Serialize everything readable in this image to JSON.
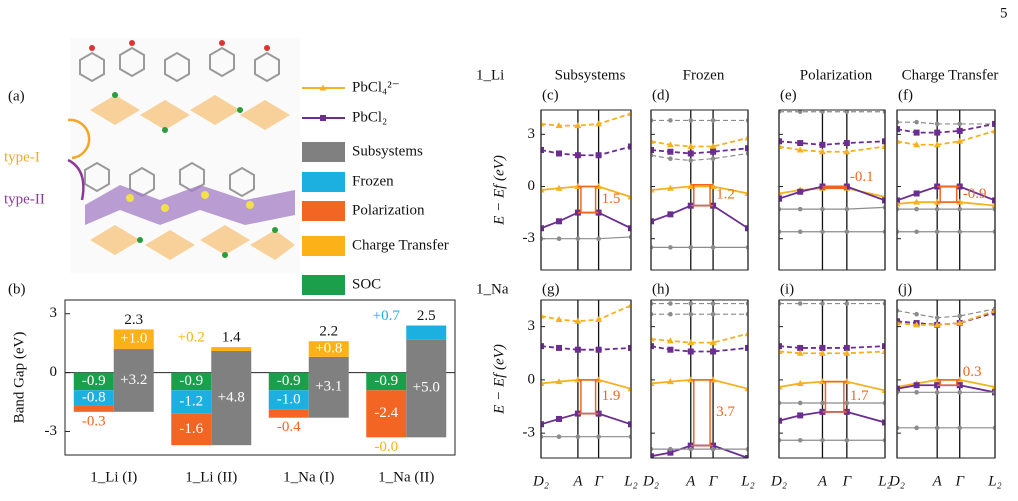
{
  "page_number": "5",
  "panel_a": {
    "label": "(a)",
    "type1": "type-I",
    "type2": "type-II"
  },
  "legend": [
    {
      "name": "PbCl₄²⁻",
      "color": "#f5b120",
      "kind": "line",
      "marker": "triangle"
    },
    {
      "name": "PbCl₂",
      "color": "#6b2d90",
      "kind": "line",
      "marker": "square"
    },
    {
      "name": "Subsystems",
      "color": "#808080",
      "kind": "patch"
    },
    {
      "name": "Frozen",
      "color": "#1cb0e0",
      "kind": "patch"
    },
    {
      "name": "Polarization",
      "color": "#f26522",
      "kind": "patch"
    },
    {
      "name": "Charge Transfer",
      "color": "#fbb117",
      "kind": "patch"
    },
    {
      "name": "SOC",
      "color": "#1a9f4a",
      "kind": "patch"
    }
  ],
  "chart_data": [
    {
      "type": "waterfall",
      "panel": "(b)",
      "ylabel": "Band Gap (eV)",
      "categories": [
        "1_Li (I)",
        "1_Li (II)",
        "1_Na (I)",
        "1_Na (II)"
      ],
      "ylim": [
        -4.2,
        3.7
      ],
      "yticks": [
        -3,
        0,
        3
      ],
      "series": [
        {
          "name": "SOC",
          "color": "#1a9f4a",
          "values": [
            -0.9,
            -0.9,
            -0.9,
            -0.9
          ]
        },
        {
          "name": "Frozen",
          "color": "#1cb0e0",
          "values": [
            -0.8,
            -1.2,
            -1.0,
            0.7
          ],
          "value_labels": [
            "-0.8",
            "-1.2",
            "-1.0",
            "+0.7"
          ]
        },
        {
          "name": "Polarization",
          "color": "#f26522",
          "values": [
            -0.3,
            -1.6,
            -0.4,
            -2.4
          ]
        },
        {
          "name": "Subsystems",
          "color": "#808080",
          "values": [
            3.2,
            4.8,
            3.1,
            5.0
          ],
          "value_labels": [
            "+3.2",
            "+4.8",
            "+3.1",
            "+5.0"
          ]
        },
        {
          "name": "Charge Transfer",
          "color": "#fbb117",
          "values": [
            1.0,
            0.2,
            0.8,
            -0.0
          ],
          "value_labels": [
            "+1.0",
            "+0.2",
            "+0.8",
            "-0.0"
          ]
        }
      ],
      "totals": [
        2.3,
        1.4,
        2.2,
        2.5
      ]
    },
    {
      "type": "line",
      "panel": "(c)",
      "title": "Subsystems",
      "row_label": "1_Li",
      "ylabel": "E − Ef (eV)",
      "ylim": [
        -4.8,
        4.4
      ],
      "yticks": [
        -3,
        0,
        3
      ],
      "x": [
        0,
        0.2,
        0.41,
        0.64,
        1
      ],
      "xticks": [
        {
          "value": 0,
          "label": "D₂"
        },
        {
          "value": 0.41,
          "label": "A"
        },
        {
          "value": 0.64,
          "label": "Γ"
        },
        {
          "value": 1,
          "label": "L₂"
        }
      ],
      "series": [
        {
          "color": "#f5b120",
          "style": "dashed",
          "marker": "triangle",
          "values": [
            3.6,
            3.5,
            3.5,
            3.6,
            4.2
          ]
        },
        {
          "color": "#6b2d90",
          "style": "dashed",
          "marker": "square",
          "values": [
            2.1,
            1.9,
            1.8,
            1.8,
            2.3
          ]
        },
        {
          "color": "#f5b120",
          "style": "solid",
          "marker": "triangle",
          "values": [
            -0.2,
            -0.1,
            0,
            0,
            -0.6
          ]
        },
        {
          "color": "#6b2d90",
          "style": "solid",
          "marker": "square",
          "values": [
            -2.4,
            -2.0,
            -1.5,
            -1.5,
            -2.4
          ]
        },
        {
          "color": "#8c8c8c",
          "style": "solid",
          "marker": "circle",
          "values": [
            -3.0,
            -3.0,
            -3.0,
            -3.0,
            -2.9
          ]
        }
      ],
      "gap": 1.5
    },
    {
      "type": "line",
      "panel": "(d)",
      "title": "Frozen",
      "ylim": [
        -4.8,
        4.4
      ],
      "yticks": [
        -3,
        0,
        3
      ],
      "x": [
        0,
        0.2,
        0.41,
        0.64,
        1
      ],
      "xticks": [
        {
          "value": 0,
          "label": "D₂"
        },
        {
          "value": 0.41,
          "label": "A"
        },
        {
          "value": 0.64,
          "label": "Γ"
        },
        {
          "value": 1,
          "label": "L₂"
        }
      ],
      "series": [
        {
          "color": "#8c8c8c",
          "style": "dashed",
          "marker": "circle",
          "values": [
            3.8,
            3.8,
            3.8,
            3.8,
            3.8
          ]
        },
        {
          "color": "#f5b120",
          "style": "dashed",
          "marker": "triangle",
          "values": [
            2.6,
            2.4,
            2.3,
            2.3,
            2.8
          ]
        },
        {
          "color": "#6b2d90",
          "style": "dashed",
          "marker": "square",
          "values": [
            2.1,
            2.0,
            1.9,
            2.0,
            2.2
          ]
        },
        {
          "color": "#8c8c8c",
          "style": "dashed",
          "marker": "circle",
          "values": [
            1.8,
            1.6,
            1.5,
            1.6,
            1.9
          ]
        },
        {
          "color": "#f5b120",
          "style": "solid",
          "marker": "triangle",
          "values": [
            -0.2,
            -0.1,
            0,
            0,
            -0.4
          ]
        },
        {
          "color": "#6b2d90",
          "style": "solid",
          "marker": "square",
          "values": [
            -2.0,
            -1.6,
            -1.1,
            -1.1,
            -2.4
          ]
        },
        {
          "color": "#8c8c8c",
          "style": "solid",
          "marker": "circle",
          "values": [
            -3.5,
            -3.5,
            -3.5,
            -3.5,
            -3.5
          ]
        }
      ],
      "gap": 1.2
    },
    {
      "type": "line",
      "panel": "(e)",
      "title": "Polarization",
      "ylim": [
        -4.8,
        4.4
      ],
      "yticks": [
        -3,
        0,
        3
      ],
      "x": [
        0,
        0.2,
        0.41,
        0.64,
        1
      ],
      "xticks": [
        {
          "value": 0,
          "label": "D₂"
        },
        {
          "value": 0.41,
          "label": "A"
        },
        {
          "value": 0.64,
          "label": "Γ"
        },
        {
          "value": 1,
          "label": "L₂"
        }
      ],
      "series": [
        {
          "color": "#8c8c8c",
          "style": "dashed",
          "marker": "circle",
          "values": [
            4.3,
            4.3,
            4.3,
            4.3,
            4.3
          ]
        },
        {
          "color": "#6b2d90",
          "style": "dashed",
          "marker": "square",
          "values": [
            2.6,
            2.5,
            2.4,
            2.5,
            2.6
          ]
        },
        {
          "color": "#f5b120",
          "style": "dashed",
          "marker": "triangle",
          "values": [
            2.3,
            2.1,
            2.0,
            2.0,
            2.3
          ]
        },
        {
          "color": "#f5b120",
          "style": "solid",
          "marker": "triangle",
          "values": [
            -0.4,
            -0.2,
            -0.1,
            -0.1,
            -0.6
          ]
        },
        {
          "color": "#6b2d90",
          "style": "solid",
          "marker": "square",
          "values": [
            -0.7,
            -0.3,
            0,
            0,
            -0.8
          ]
        },
        {
          "color": "#8c8c8c",
          "style": "solid",
          "marker": "circle",
          "values": [
            -1.3,
            -1.3,
            -1.3,
            -1.3,
            -1.2
          ]
        },
        {
          "color": "#8c8c8c",
          "style": "solid",
          "marker": "circle",
          "values": [
            -2.6,
            -2.6,
            -2.6,
            -2.6,
            -2.6
          ]
        }
      ],
      "gap": -0.1
    },
    {
      "type": "line",
      "panel": "(f)",
      "title": "Charge Transfer",
      "ylim": [
        -4.8,
        4.4
      ],
      "yticks": [
        -3,
        0,
        3
      ],
      "x": [
        0,
        0.2,
        0.41,
        0.64,
        1
      ],
      "xticks": [
        {
          "value": 0,
          "label": "D₂"
        },
        {
          "value": 0.41,
          "label": "A"
        },
        {
          "value": 0.64,
          "label": "Γ"
        },
        {
          "value": 1,
          "label": "L₂"
        }
      ],
      "series": [
        {
          "color": "#8c8c8c",
          "style": "dashed",
          "marker": "circle",
          "values": [
            3.7,
            3.7,
            3.6,
            3.6,
            3.6
          ]
        },
        {
          "color": "#6b2d90",
          "style": "dashed",
          "marker": "square",
          "values": [
            3.3,
            3.1,
            3.1,
            3.2,
            3.6
          ]
        },
        {
          "color": "#f5b120",
          "style": "dashed",
          "marker": "triangle",
          "values": [
            2.6,
            2.4,
            2.4,
            2.6,
            3.2
          ]
        },
        {
          "color": "#6b2d90",
          "style": "solid",
          "marker": "square",
          "values": [
            -0.8,
            -0.4,
            0,
            0,
            -0.8
          ]
        },
        {
          "color": "#f5b120",
          "style": "solid",
          "marker": "triangle",
          "values": [
            -1.0,
            -0.9,
            -0.9,
            -0.9,
            -1.1
          ]
        },
        {
          "color": "#8c8c8c",
          "style": "solid",
          "marker": "circle",
          "values": [
            -1.3,
            -1.3,
            -1.3,
            -1.3,
            -1.3
          ]
        },
        {
          "color": "#8c8c8c",
          "style": "solid",
          "marker": "circle",
          "values": [
            -2.6,
            -2.6,
            -2.6,
            -2.6,
            -2.6
          ]
        }
      ],
      "gap": -0.9
    },
    {
      "type": "line",
      "panel": "(g)",
      "row_label": "1_Na",
      "ylabel": "E − Ef (eV)",
      "ylim": [
        -4.4,
        4.5
      ],
      "yticks": [
        -3,
        0,
        3
      ],
      "x": [
        0,
        0.2,
        0.41,
        0.64,
        1
      ],
      "xticks": [
        {
          "value": 0,
          "label": "D₂"
        },
        {
          "value": 0.41,
          "label": "A"
        },
        {
          "value": 0.64,
          "label": "Γ"
        },
        {
          "value": 1,
          "label": "L₂"
        }
      ],
      "series": [
        {
          "color": "#f5b120",
          "style": "dashed",
          "marker": "triangle",
          "values": [
            3.6,
            3.4,
            3.3,
            3.4,
            4.2
          ]
        },
        {
          "color": "#6b2d90",
          "style": "dashed",
          "marker": "square",
          "values": [
            1.9,
            1.8,
            1.7,
            1.7,
            1.8
          ]
        },
        {
          "color": "#f5b120",
          "style": "solid",
          "marker": "triangle",
          "values": [
            -0.2,
            -0.1,
            0,
            0,
            -0.5
          ]
        },
        {
          "color": "#6b2d90",
          "style": "solid",
          "marker": "square",
          "values": [
            -2.5,
            -2.2,
            -1.9,
            -1.9,
            -2.5
          ]
        },
        {
          "color": "#8c8c8c",
          "style": "solid",
          "marker": "circle",
          "values": [
            -3.2,
            -3.2,
            -3.2,
            -3.2,
            -3.2
          ]
        }
      ],
      "gap": 1.9
    },
    {
      "type": "line",
      "panel": "(h)",
      "ylim": [
        -4.4,
        4.5
      ],
      "yticks": [
        -3,
        0,
        3
      ],
      "x": [
        0,
        0.2,
        0.41,
        0.64,
        1
      ],
      "xticks": [
        {
          "value": 0,
          "label": "D₂"
        },
        {
          "value": 0.41,
          "label": "A"
        },
        {
          "value": 0.64,
          "label": "Γ"
        },
        {
          "value": 1,
          "label": "L₂"
        }
      ],
      "series": [
        {
          "color": "#8c8c8c",
          "style": "dashed",
          "marker": "circle",
          "values": [
            4.3,
            4.3,
            4.3,
            4.3,
            4.3
          ]
        },
        {
          "color": "#8c8c8c",
          "style": "dashed",
          "marker": "circle",
          "values": [
            3.7,
            3.7,
            3.7,
            3.7,
            3.7
          ]
        },
        {
          "color": "#f5b120",
          "style": "dashed",
          "marker": "triangle",
          "values": [
            2.3,
            2.2,
            2.1,
            2.1,
            2.6
          ]
        },
        {
          "color": "#6b2d90",
          "style": "dashed",
          "marker": "square",
          "values": [
            1.9,
            1.7,
            1.6,
            1.6,
            1.8
          ]
        },
        {
          "color": "#f5b120",
          "style": "solid",
          "marker": "triangle",
          "values": [
            -0.2,
            -0.1,
            0,
            0,
            -0.5
          ]
        },
        {
          "color": "#6b2d90",
          "style": "solid",
          "marker": "square",
          "values": [
            -4.3,
            -4.1,
            -3.7,
            -3.7,
            -4.4
          ]
        },
        {
          "color": "#8c8c8c",
          "style": "solid",
          "marker": "circle",
          "values": [
            -3.9,
            -3.9,
            -3.9,
            -3.9,
            -3.9
          ]
        }
      ],
      "gap": 3.7
    },
    {
      "type": "line",
      "panel": "(i)",
      "ylim": [
        -4.4,
        4.5
      ],
      "yticks": [
        -3,
        0,
        3
      ],
      "x": [
        0,
        0.2,
        0.41,
        0.64,
        1
      ],
      "xticks": [
        {
          "value": 0,
          "label": "D₂"
        },
        {
          "value": 0.41,
          "label": "A"
        },
        {
          "value": 0.64,
          "label": "Γ"
        },
        {
          "value": 1,
          "label": "L₂"
        }
      ],
      "series": [
        {
          "color": "#8c8c8c",
          "style": "dashed",
          "marker": "circle",
          "values": [
            4.3,
            4.3,
            4.3,
            4.3,
            4.3
          ]
        },
        {
          "color": "#6b2d90",
          "style": "dashed",
          "marker": "square",
          "values": [
            1.9,
            1.8,
            1.8,
            1.8,
            1.9
          ]
        },
        {
          "color": "#f5b120",
          "style": "dashed",
          "marker": "triangle",
          "values": [
            1.6,
            1.5,
            1.5,
            1.5,
            1.6
          ]
        },
        {
          "color": "#f5b120",
          "style": "solid",
          "marker": "triangle",
          "values": [
            -0.4,
            -0.2,
            -0.1,
            -0.1,
            -0.6
          ]
        },
        {
          "color": "#6b2d90",
          "style": "solid",
          "marker": "square",
          "values": [
            -2.3,
            -2.0,
            -1.8,
            -1.8,
            -2.4
          ]
        },
        {
          "color": "#8c8c8c",
          "style": "solid",
          "marker": "circle",
          "values": [
            -1.3,
            -1.3,
            -1.3,
            -1.3,
            -1.3
          ]
        },
        {
          "color": "#8c8c8c",
          "style": "solid",
          "marker": "circle",
          "values": [
            -3.4,
            -3.4,
            -3.4,
            -3.4,
            -3.4
          ]
        }
      ],
      "gap": 1.7
    },
    {
      "type": "line",
      "panel": "(j)",
      "ylim": [
        -4.4,
        4.5
      ],
      "yticks": [
        -3,
        0,
        3
      ],
      "x": [
        0,
        0.2,
        0.41,
        0.64,
        1
      ],
      "xticks": [
        {
          "value": 0,
          "label": "D₂"
        },
        {
          "value": 0.41,
          "label": "A"
        },
        {
          "value": 0.64,
          "label": "Γ"
        },
        {
          "value": 1,
          "label": "L₂"
        }
      ],
      "series": [
        {
          "color": "#8c8c8c",
          "style": "dashed",
          "marker": "circle",
          "values": [
            3.9,
            3.7,
            3.5,
            3.6,
            4.0
          ]
        },
        {
          "color": "#6b2d90",
          "style": "dashed",
          "marker": "square",
          "values": [
            3.3,
            3.2,
            3.1,
            3.2,
            3.8
          ]
        },
        {
          "color": "#f5b120",
          "style": "dashed",
          "marker": "triangle",
          "values": [
            3.2,
            3.1,
            3.1,
            3.2,
            3.9
          ]
        },
        {
          "color": "#f5b120",
          "style": "solid",
          "marker": "triangle",
          "values": [
            -0.4,
            -0.2,
            0,
            0,
            -0.4
          ]
        },
        {
          "color": "#6b2d90",
          "style": "solid",
          "marker": "square",
          "values": [
            -0.5,
            -0.3,
            -0.3,
            -0.3,
            -0.7
          ]
        },
        {
          "color": "#8c8c8c",
          "style": "solid",
          "marker": "circle",
          "values": [
            -0.7,
            -0.7,
            -0.7,
            -0.7,
            -0.7
          ]
        },
        {
          "color": "#8c8c8c",
          "style": "solid",
          "marker": "circle",
          "values": [
            -2.7,
            -2.7,
            -2.7,
            -2.7,
            -2.7
          ]
        }
      ],
      "gap": 0.3
    }
  ]
}
